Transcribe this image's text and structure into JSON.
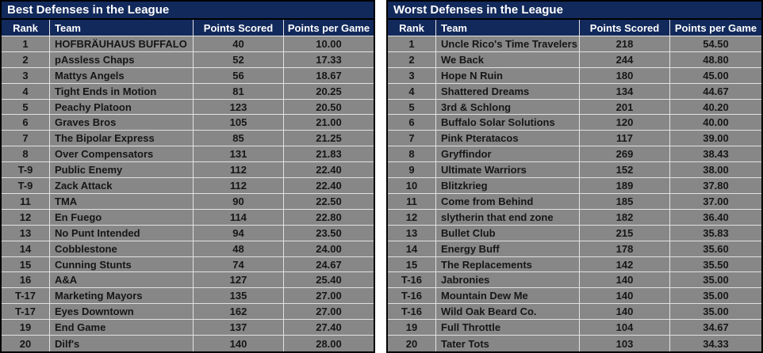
{
  "colors": {
    "header_navy": "#12295b",
    "row_gray": "#878787",
    "grid_line": "#e2e2e2",
    "outer_border": "#000000",
    "title_text": "#ffffff",
    "data_text": "#161616"
  },
  "columns": [
    "Rank",
    "Team",
    "Points Scored",
    "Points per Game"
  ],
  "tables": [
    {
      "title": "Best Defenses in the League",
      "rows": [
        {
          "rank": "1",
          "team": "HOFBRÄUHAUS BUFFALO",
          "points": "40",
          "ppg": "10.00"
        },
        {
          "rank": "2",
          "team": "pAssless Chaps",
          "points": "52",
          "ppg": "17.33"
        },
        {
          "rank": "3",
          "team": "Mattys Angels",
          "points": "56",
          "ppg": "18.67"
        },
        {
          "rank": "4",
          "team": "Tight Ends in Motion",
          "points": "81",
          "ppg": "20.25"
        },
        {
          "rank": "5",
          "team": "Peachy Platoon",
          "points": "123",
          "ppg": "20.50"
        },
        {
          "rank": "6",
          "team": "Graves Bros",
          "points": "105",
          "ppg": "21.00"
        },
        {
          "rank": "7",
          "team": "The Bipolar Express",
          "points": "85",
          "ppg": "21.25"
        },
        {
          "rank": "8",
          "team": "Over Compensators",
          "points": "131",
          "ppg": "21.83"
        },
        {
          "rank": "T-9",
          "team": "Public Enemy",
          "points": "112",
          "ppg": "22.40"
        },
        {
          "rank": "T-9",
          "team": "Zack Attack",
          "points": "112",
          "ppg": "22.40"
        },
        {
          "rank": "11",
          "team": "TMA",
          "points": "90",
          "ppg": "22.50"
        },
        {
          "rank": "12",
          "team": "En Fuego",
          "points": "114",
          "ppg": "22.80"
        },
        {
          "rank": "13",
          "team": "No Punt Intended",
          "points": "94",
          "ppg": "23.50"
        },
        {
          "rank": "14",
          "team": "Cobblestone",
          "points": "48",
          "ppg": "24.00"
        },
        {
          "rank": "15",
          "team": "Cunning Stunts",
          "points": "74",
          "ppg": "24.67"
        },
        {
          "rank": "16",
          "team": "A&A",
          "points": "127",
          "ppg": "25.40"
        },
        {
          "rank": "T-17",
          "team": "Marketing Mayors",
          "points": "135",
          "ppg": "27.00"
        },
        {
          "rank": "T-17",
          "team": "Eyes Downtown",
          "points": "162",
          "ppg": "27.00"
        },
        {
          "rank": "19",
          "team": "End Game",
          "points": "137",
          "ppg": "27.40"
        },
        {
          "rank": "20",
          "team": "Dilf's",
          "points": "140",
          "ppg": "28.00"
        }
      ]
    },
    {
      "title": "Worst Defenses in the League",
      "rows": [
        {
          "rank": "1",
          "team": "Uncle Rico's Time Travelers",
          "points": "218",
          "ppg": "54.50"
        },
        {
          "rank": "2",
          "team": "We Back",
          "points": "244",
          "ppg": "48.80"
        },
        {
          "rank": "3",
          "team": "Hope N Ruin",
          "points": "180",
          "ppg": "45.00"
        },
        {
          "rank": "4",
          "team": "Shattered Dreams",
          "points": "134",
          "ppg": "44.67"
        },
        {
          "rank": "5",
          "team": "3rd & Schlong",
          "points": "201",
          "ppg": "40.20"
        },
        {
          "rank": "6",
          "team": "Buffalo Solar Solutions",
          "points": "120",
          "ppg": "40.00"
        },
        {
          "rank": "7",
          "team": "Pink Pteratacos",
          "points": "117",
          "ppg": "39.00"
        },
        {
          "rank": "8",
          "team": "Gryffindor",
          "points": "269",
          "ppg": "38.43"
        },
        {
          "rank": "9",
          "team": "Ultimate Warriors",
          "points": "152",
          "ppg": "38.00"
        },
        {
          "rank": "10",
          "team": "Blitzkrieg",
          "points": "189",
          "ppg": "37.80"
        },
        {
          "rank": "11",
          "team": "Come from Behind",
          "points": "185",
          "ppg": "37.00"
        },
        {
          "rank": "12",
          "team": "slytherin that end zone",
          "points": "182",
          "ppg": "36.40"
        },
        {
          "rank": "13",
          "team": "Bullet Club",
          "points": "215",
          "ppg": "35.83"
        },
        {
          "rank": "14",
          "team": "Energy Buff",
          "points": "178",
          "ppg": "35.60"
        },
        {
          "rank": "15",
          "team": "The Replacements",
          "points": "142",
          "ppg": "35.50"
        },
        {
          "rank": "T-16",
          "team": "Jabronies",
          "points": "140",
          "ppg": "35.00"
        },
        {
          "rank": "T-16",
          "team": "Mountain Dew Me",
          "points": "140",
          "ppg": "35.00"
        },
        {
          "rank": "T-16",
          "team": "Wild Oak Beard Co.",
          "points": "140",
          "ppg": "35.00"
        },
        {
          "rank": "19",
          "team": "Full Throttle",
          "points": "104",
          "ppg": "34.67"
        },
        {
          "rank": "20",
          "team": "Tater Tots",
          "points": "103",
          "ppg": "34.33"
        }
      ]
    }
  ]
}
